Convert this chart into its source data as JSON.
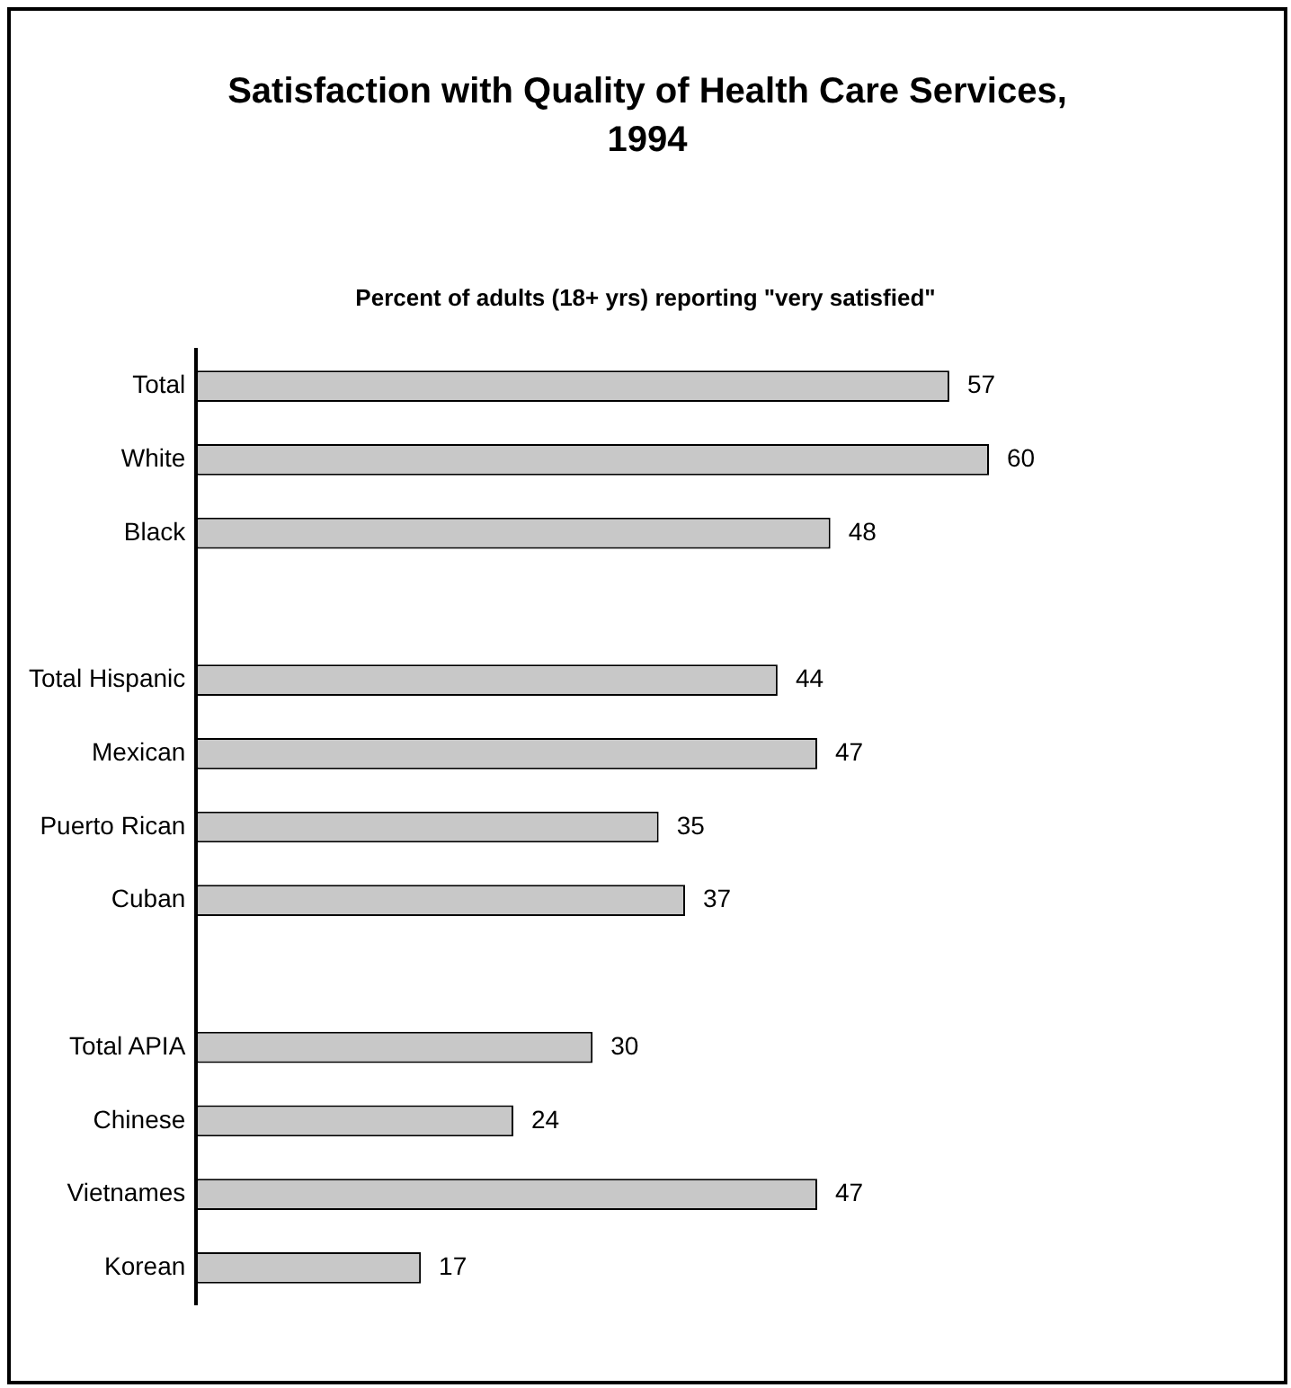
{
  "chart_data": {
    "type": "bar",
    "orientation": "horizontal",
    "title": "Satisfaction with Quality of Health Care Services, 1994",
    "subtitle": "Percent of adults (18+ yrs) reporting \"very satisfied\"",
    "categories": [
      "Total",
      "White",
      "Black",
      null,
      "Total Hispanic",
      "Mexican",
      "Puerto Rican",
      "Cuban",
      null,
      "Total APIA",
      "Chinese",
      "Vietnames",
      "Korean"
    ],
    "values": [
      57,
      60,
      48,
      null,
      44,
      47,
      35,
      37,
      null,
      30,
      24,
      47,
      17
    ],
    "color": "#c8c8c8",
    "data_labels": true,
    "grid": false,
    "legend": false
  }
}
